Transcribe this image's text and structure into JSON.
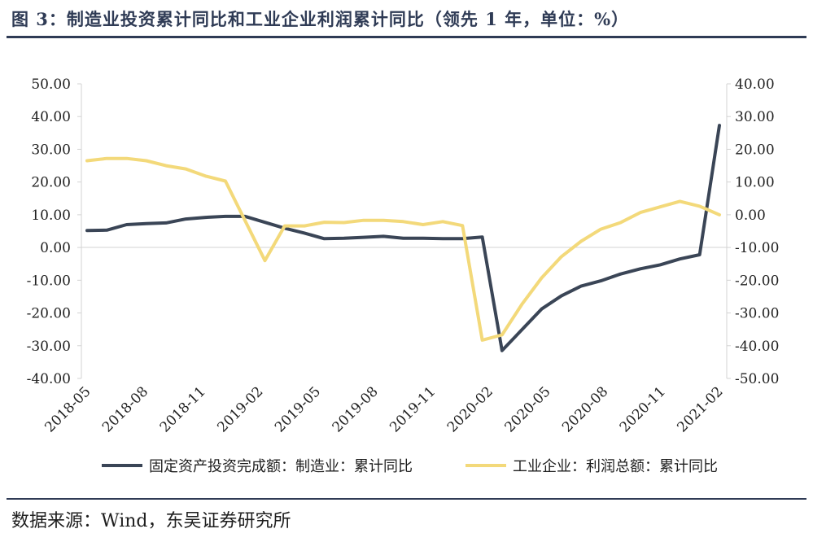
{
  "header": {
    "title": "图 3：制造业投资累计同比和工业企业利润累计同比（领先 1 年，单位：%）"
  },
  "footer": {
    "source": "数据来源：Wind，东吴证券研究所"
  },
  "colors": {
    "dark_series": "#3a4556",
    "yellow_series": "#f3d97a",
    "accent": "#2f3b55"
  },
  "chart_data": {
    "type": "line",
    "title": "制造业投资累计同比和工业企业利润累计同比（领先 1 年，单位：%）",
    "x_labels": [
      "2018-05",
      "2018-08",
      "2018-11",
      "2019-02",
      "2019-05",
      "2019-08",
      "2019-11",
      "2020-02",
      "2020-05",
      "2020-08",
      "2020-11",
      "2021-02"
    ],
    "y_left": {
      "min": -40,
      "max": 50,
      "ticks": [
        "50.00",
        "40.00",
        "30.00",
        "20.00",
        "10.00",
        "0.00",
        "-10.00",
        "-20.00",
        "-30.00",
        "-40.00"
      ]
    },
    "y_right": {
      "min": -50,
      "max": 40,
      "ticks": [
        "40.00",
        "30.00",
        "20.00",
        "10.00",
        "0.00",
        "-10.00",
        "-20.00",
        "-30.00",
        "-40.00",
        "-50.00"
      ]
    },
    "grid": false,
    "legend_position": "bottom",
    "series": [
      {
        "name": "固定资产投资完成额：制造业：累计同比",
        "axis": "left",
        "values": [
          5.2,
          5.3,
          7.0,
          7.3,
          7.5,
          8.7,
          9.2,
          9.5,
          9.5,
          null,
          5.9,
          4.4,
          2.7,
          2.8,
          3.1,
          3.4,
          2.8,
          2.8,
          2.7,
          2.7,
          3.2,
          -31.5,
          null,
          -18.8,
          -14.8,
          -11.8,
          -10.2,
          -8.1,
          -6.5,
          -5.3,
          -3.5,
          -2.2,
          37.3
        ]
      },
      {
        "name": "工业企业：利润总额：累计同比",
        "axis": "right",
        "values": [
          16.5,
          17.2,
          17.2,
          16.5,
          15.0,
          14.0,
          11.8,
          10.3,
          null,
          -14.0,
          -3.4,
          -3.4,
          -2.3,
          -2.4,
          -1.7,
          -1.7,
          -2.1,
          -3.0,
          -2.1,
          -3.3,
          -38.3,
          -36.7,
          -27.4,
          -19.3,
          -12.8,
          -8.1,
          -4.4,
          -2.4,
          0.7,
          2.4,
          4.1,
          2.6,
          0.0
        ]
      }
    ]
  }
}
